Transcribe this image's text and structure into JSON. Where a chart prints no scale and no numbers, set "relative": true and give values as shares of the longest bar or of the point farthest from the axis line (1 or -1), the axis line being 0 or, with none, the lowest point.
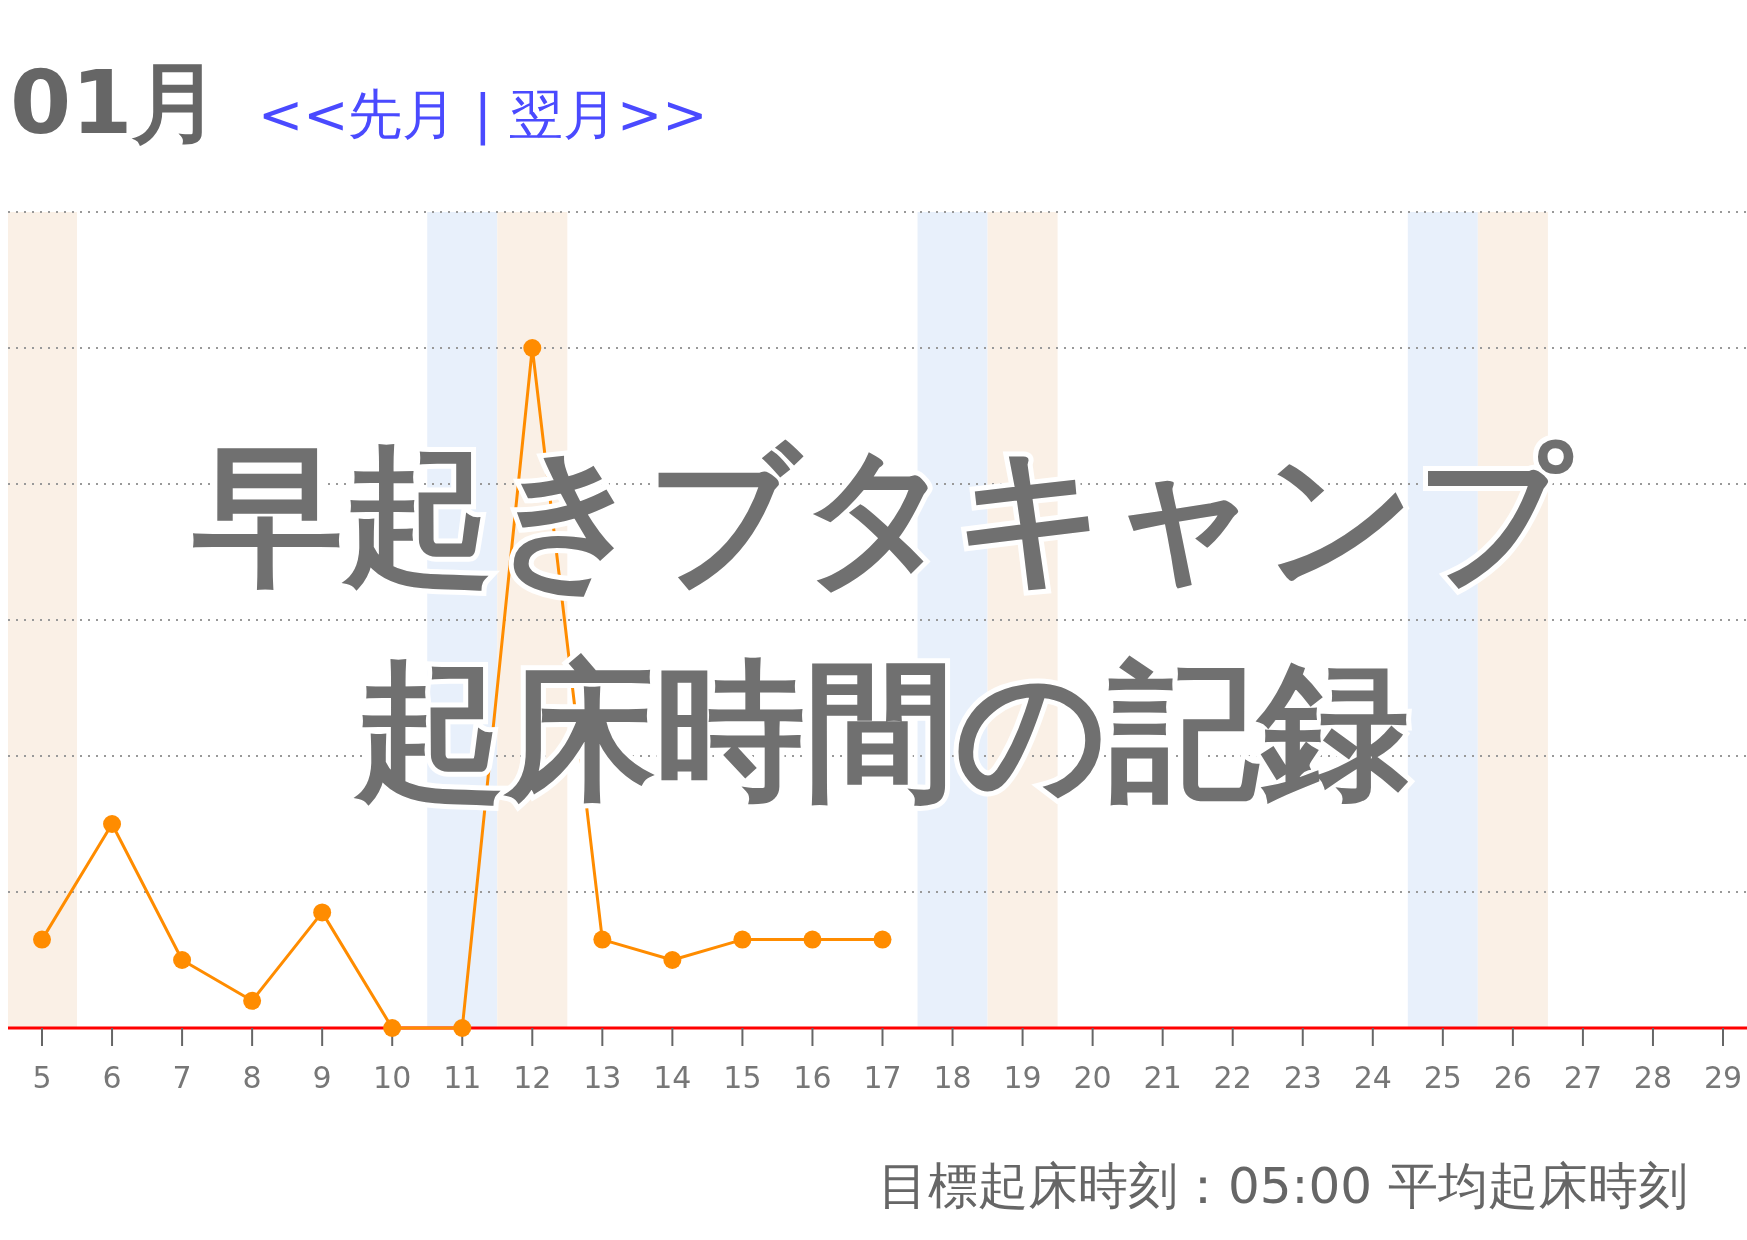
{
  "chart_data": {
    "type": "line",
    "title": "早起きブタキャンプ",
    "subtitle": "起床時間の記録",
    "categories": [
      "5",
      "6",
      "7",
      "8",
      "9",
      "10",
      "11",
      "12",
      "13",
      "14",
      "15",
      "16",
      "17",
      "18",
      "19",
      "20",
      "21",
      "22",
      "23",
      "24",
      "25",
      "26",
      "27",
      "28",
      "29"
    ],
    "series": [
      {
        "color": "#ff8c00",
        "values": [
          0.13,
          0.3,
          0.1,
          0.04,
          0.17,
          0,
          0,
          1,
          0.13,
          0.1,
          0.13,
          0.13,
          0.13,
          null,
          null,
          null,
          null,
          null,
          null,
          null,
          null,
          null,
          null,
          null,
          null
        ]
      }
    ],
    "relative": true,
    "marker": "circle",
    "grid": "y",
    "bands": [
      {
        "axis": "x",
        "from": "5",
        "to": "5",
        "color": "#faf0e6"
      },
      {
        "axis": "x",
        "from": "11",
        "to": "11",
        "color": "#e8f0fb"
      },
      {
        "axis": "x",
        "from": "12",
        "to": "12",
        "color": "#faf0e6"
      },
      {
        "axis": "x",
        "from": "18",
        "to": "18",
        "color": "#e8f0fb"
      },
      {
        "axis": "x",
        "from": "19",
        "to": "19",
        "color": "#faf0e6"
      },
      {
        "axis": "x",
        "from": "25",
        "to": "25",
        "color": "#e8f0fb"
      },
      {
        "axis": "x",
        "from": "26",
        "to": "26",
        "color": "#faf0e6"
      }
    ],
    "annotations": [
      "01月",
      "<<先月 | 翌月>>",
      "目標起床時刻：05:00 平均起床時刻"
    ]
  }
}
